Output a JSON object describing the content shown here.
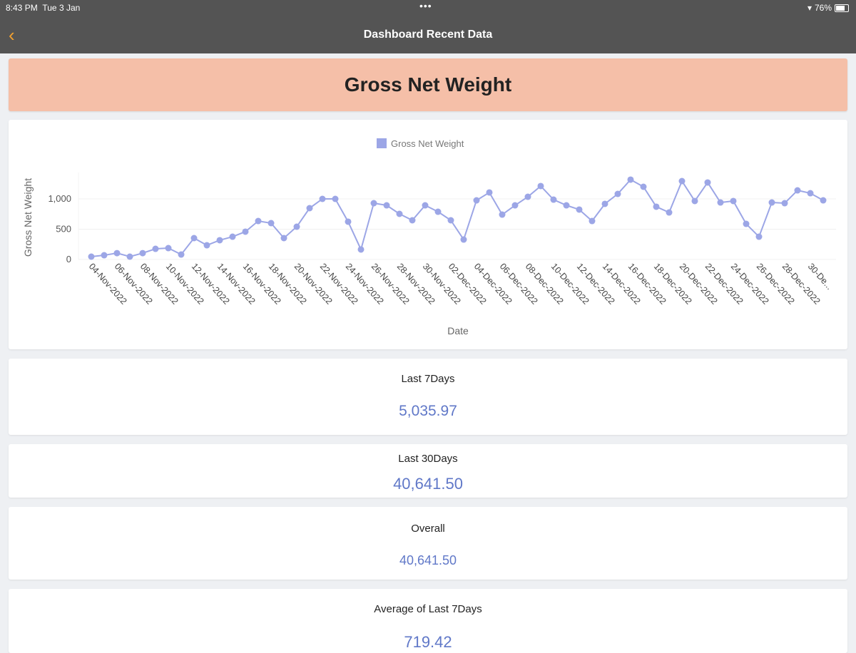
{
  "status_bar": {
    "time": "8:43 PM",
    "date": "Tue 3 Jan",
    "dots": "•••",
    "battery": "76%",
    "battery_level": 0.76
  },
  "nav": {
    "title": "Dashboard Recent Data",
    "back_icon": "chevron-left-icon"
  },
  "banner": {
    "title": "Gross Net Weight"
  },
  "colors": {
    "accent": "#f0a030",
    "banner": "#f5bfa8",
    "series": "#9ca6e6",
    "value": "#6078c8"
  },
  "chart_data": {
    "type": "line",
    "legend": [
      "Gross Net Weight"
    ],
    "legend_placement": "top-center",
    "xlabel": "Date",
    "ylabel": "Gross Net Weight",
    "ylim": [
      0,
      1420
    ],
    "yticks": [
      0,
      500,
      1000
    ],
    "ytick_labels": [
      "0",
      "500",
      "1,000"
    ],
    "grid": true,
    "xtick_labels": [
      "04-Nov-2022",
      "06-Nov-2022",
      "08-Nov-2022",
      "10-Nov-2022",
      "12-Nov-2022",
      "14-Nov-2022",
      "16-Nov-2022",
      "18-Nov-2022",
      "20-Nov-2022",
      "22-Nov-2022",
      "24-Nov-2022",
      "26-Nov-2022",
      "28-Nov-2022",
      "30-Nov-2022",
      "02-Dec-2022",
      "04-Dec-2022",
      "06-Dec-2022",
      "08-Dec-2022",
      "10-Dec-2022",
      "12-Dec-2022",
      "14-Dec-2022",
      "16-Dec-2022",
      "18-Dec-2022",
      "20-Dec-2022",
      "22-Dec-2022",
      "24-Dec-2022",
      "26-Dec-2022",
      "28-Dec-2022",
      "30-De..."
    ],
    "series": [
      {
        "name": "Gross Net Weight",
        "values": [
          47,
          70,
          105,
          47,
          105,
          176,
          188,
          82,
          353,
          235,
          318,
          376,
          459,
          635,
          600,
          353,
          541,
          847,
          1000,
          1000,
          624,
          165,
          929,
          894,
          753,
          647,
          894,
          788,
          647,
          329,
          976,
          1106,
          741,
          894,
          1035,
          1212,
          988,
          894,
          824,
          635,
          918,
          1082,
          1318,
          1200,
          871,
          776,
          1294,
          965,
          1271,
          941,
          965,
          588,
          376,
          941,
          929,
          1141,
          1094,
          976
        ]
      }
    ]
  },
  "stats": [
    {
      "label": "Last 7Days",
      "value": "5,035.97"
    },
    {
      "label": "Last 30Days",
      "value": "40,641.50"
    },
    {
      "label": "Overall",
      "value": "40,641.50"
    },
    {
      "label": "Average of Last 7Days",
      "value": "719.42"
    }
  ]
}
